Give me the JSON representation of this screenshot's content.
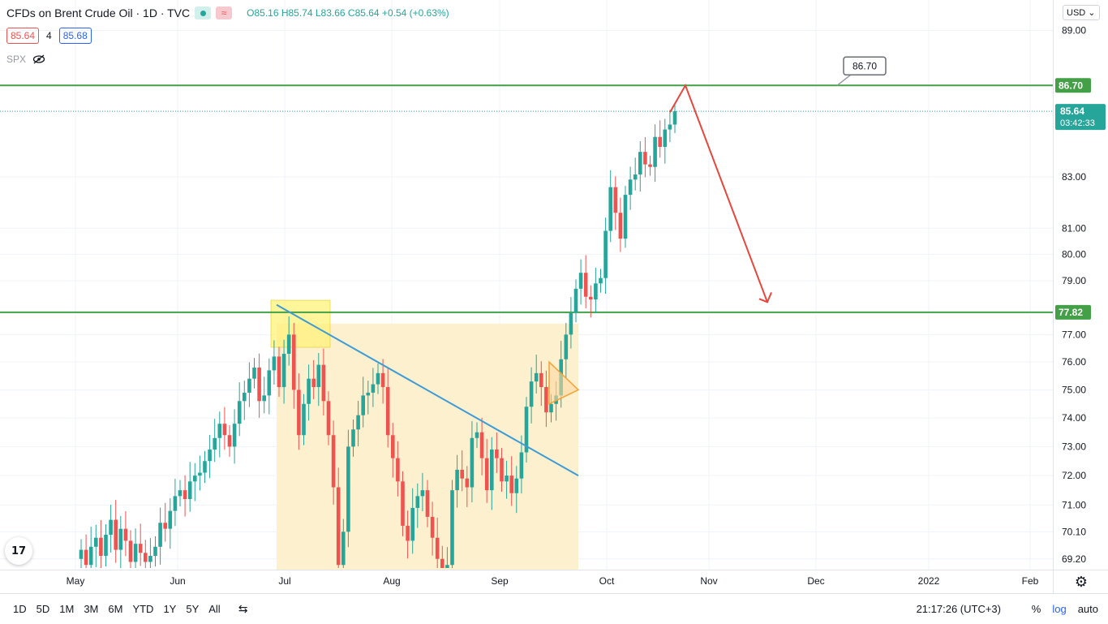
{
  "header": {
    "title": "CFDs on Brent Crude Oil · 1D · TVC",
    "ohlc": "O85.16 H85.74 L83.66 C85.64 +0.54 (+0.63%)",
    "bid": "85.64",
    "spread": "4",
    "ask": "85.68",
    "compare_symbol": "SPX",
    "currency": "USD",
    "currency_chevron": "⌄"
  },
  "bottom_bar": {
    "timeframes": [
      "1D",
      "5D",
      "1M",
      "3M",
      "6M",
      "YTD",
      "1Y",
      "5Y",
      "All"
    ],
    "clock": "21:17:26 (UTC+3)",
    "percent": "%",
    "log": "log",
    "auto": "auto"
  },
  "colors": {
    "up": "#26a69a",
    "down": "#ef5350",
    "level_line": "#43a047",
    "trendline": "#3d9bd6",
    "forecast_arrow": "#e8463c",
    "highlight": "#fff27a",
    "range_fill": "#fdf0cf"
  },
  "icons": {
    "settings": "gear-icon",
    "compare": "compare-icon",
    "visibility": "eye-off-icon",
    "logo": "tradingview-logo"
  },
  "chart_data": {
    "type": "candlestick",
    "title": "CFDs on Brent Crude Oil · 1D · TVC",
    "y_axis_ticks": [
      "69.20",
      "70.10",
      "71.00",
      "72.00",
      "73.00",
      "74.00",
      "75.00",
      "76.00",
      "77.00",
      "79.00",
      "80.00",
      "81.00",
      "83.00",
      "89.00"
    ],
    "x_axis_ticks": [
      "May",
      "Jun",
      "Jul",
      "Aug",
      "Sep",
      "Oct",
      "Nov",
      "Dec",
      "2022",
      "Feb"
    ],
    "ylim": [
      68.9,
      90.3
    ],
    "levels": [
      {
        "label": "86.70",
        "value": 86.7
      },
      {
        "label": "77.82",
        "value": 77.82
      }
    ],
    "last_price": {
      "label": "85.64",
      "countdown": "03:42:33",
      "value": 85.64
    },
    "callout": {
      "label": "86.70",
      "value": 86.7
    },
    "candles_close": [
      69.5,
      69.0,
      69.6,
      69.9,
      69.3,
      70.0,
      70.5,
      69.5,
      70.2,
      69.8,
      69.1,
      69.7,
      69.4,
      69.1,
      69.3,
      69.6,
      70.4,
      70.2,
      70.8,
      71.3,
      71.5,
      71.2,
      71.8,
      72.0,
      72.1,
      72.5,
      72.9,
      73.3,
      73.8,
      73.4,
      73.0,
      73.8,
      74.6,
      74.9,
      75.4,
      75.8,
      74.6,
      74.8,
      75.7,
      76.2,
      75.1,
      76.3,
      77.0,
      75.0,
      73.4,
      74.5,
      75.4,
      75.1,
      75.9,
      74.6,
      73.4,
      71.6,
      69.0,
      70.1,
      73.0,
      73.6,
      74.1,
      74.8,
      74.9,
      75.2,
      75.6,
      75.1,
      73.4,
      72.6,
      71.8,
      70.3,
      69.8,
      70.9,
      71.3,
      71.5,
      70.6,
      69.9,
      69.2,
      68.9,
      69.0,
      71.5,
      72.2,
      71.9,
      71.6,
      73.3,
      73.5,
      72.6,
      71.5,
      72.9,
      72.6,
      71.8,
      72.0,
      71.4,
      71.9,
      72.8,
      74.4,
      75.3,
      75.6,
      75.1,
      74.2,
      74.5,
      74.8,
      76.1,
      77.0,
      77.8,
      78.7,
      79.3,
      78.4,
      78.3,
      78.9,
      79.1,
      80.9,
      82.6,
      81.6,
      80.6,
      82.3,
      82.9,
      83.1,
      84.0,
      83.5,
      83.4,
      84.6,
      84.2,
      84.9,
      85.1,
      85.64
    ],
    "range_box": {
      "from_month": "Jul",
      "to_month": "late Sep",
      "low": 68.9,
      "high": 77.4
    },
    "triangle_from": 78.1,
    "triangle_to": 72.0,
    "forecast": [
      86.7,
      78.2
    ]
  }
}
